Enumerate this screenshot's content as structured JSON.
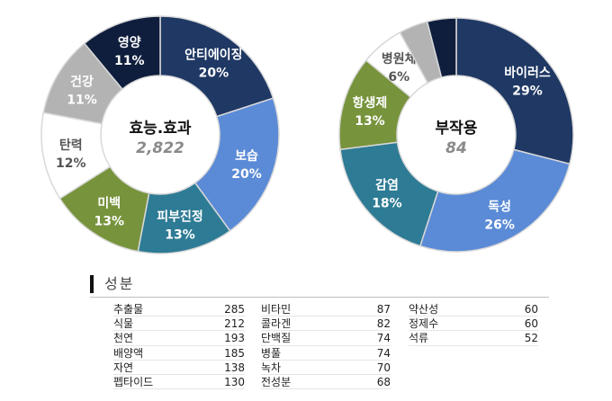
{
  "chart_data": [
    {
      "type": "pie",
      "variant": "donut",
      "title": "효능.효과",
      "total": "2,822",
      "slices": [
        {
          "label": "안티에이징",
          "value": 20,
          "value_label": "20%",
          "color": "#1f3864"
        },
        {
          "label": "보습",
          "value": 20,
          "value_label": "20%",
          "color": "#5b8bd6"
        },
        {
          "label": "피부진정",
          "value": 13,
          "value_label": "13%",
          "color": "#2e7b95"
        },
        {
          "label": "미백",
          "value": 13,
          "value_label": "13%",
          "color": "#77933c"
        },
        {
          "label": "탄력",
          "value": 12,
          "value_label": "12%",
          "color": "#ffffff"
        },
        {
          "label": "건강",
          "value": 11,
          "value_label": "11%",
          "color": "#b3b3b3"
        },
        {
          "label": "영양",
          "value": 11,
          "value_label": "11%",
          "color": "#0f1e3d"
        }
      ]
    },
    {
      "type": "pie",
      "variant": "donut",
      "title": "부작용",
      "total": "84",
      "slices": [
        {
          "label": "바이러스",
          "value": 29,
          "value_label": "29%",
          "color": "#1f3864"
        },
        {
          "label": "독성",
          "value": 26,
          "value_label": "26%",
          "color": "#5b8bd6"
        },
        {
          "label": "감염",
          "value": 18,
          "value_label": "18%",
          "color": "#2e7b95"
        },
        {
          "label": "항생제",
          "value": 13,
          "value_label": "13%",
          "color": "#77933c"
        },
        {
          "label": "병원체",
          "value": 6,
          "value_label": "6%",
          "color": "#ffffff"
        },
        {
          "label": "",
          "value": 4,
          "value_label": "",
          "color": "#b3b3b3"
        },
        {
          "label": "",
          "value": 4,
          "value_label": "",
          "color": "#0f1e3d"
        }
      ]
    }
  ],
  "ingredients": {
    "title": "성분",
    "columns": [
      [
        {
          "name": "추출물",
          "count": "285"
        },
        {
          "name": "식물",
          "count": "212"
        },
        {
          "name": "천연",
          "count": "193"
        },
        {
          "name": "배양액",
          "count": "185"
        },
        {
          "name": "자연",
          "count": "138"
        },
        {
          "name": "펩타이드",
          "count": "130"
        }
      ],
      [
        {
          "name": "비타민",
          "count": "87"
        },
        {
          "name": "콜라겐",
          "count": "82"
        },
        {
          "name": "단백질",
          "count": "74"
        },
        {
          "name": "병풀",
          "count": "74"
        },
        {
          "name": "녹차",
          "count": "70"
        },
        {
          "name": "전성분",
          "count": "68"
        }
      ],
      [
        {
          "name": "약산성",
          "count": "60"
        },
        {
          "name": "정제수",
          "count": "60"
        },
        {
          "name": "석류",
          "count": "52"
        }
      ]
    ]
  }
}
